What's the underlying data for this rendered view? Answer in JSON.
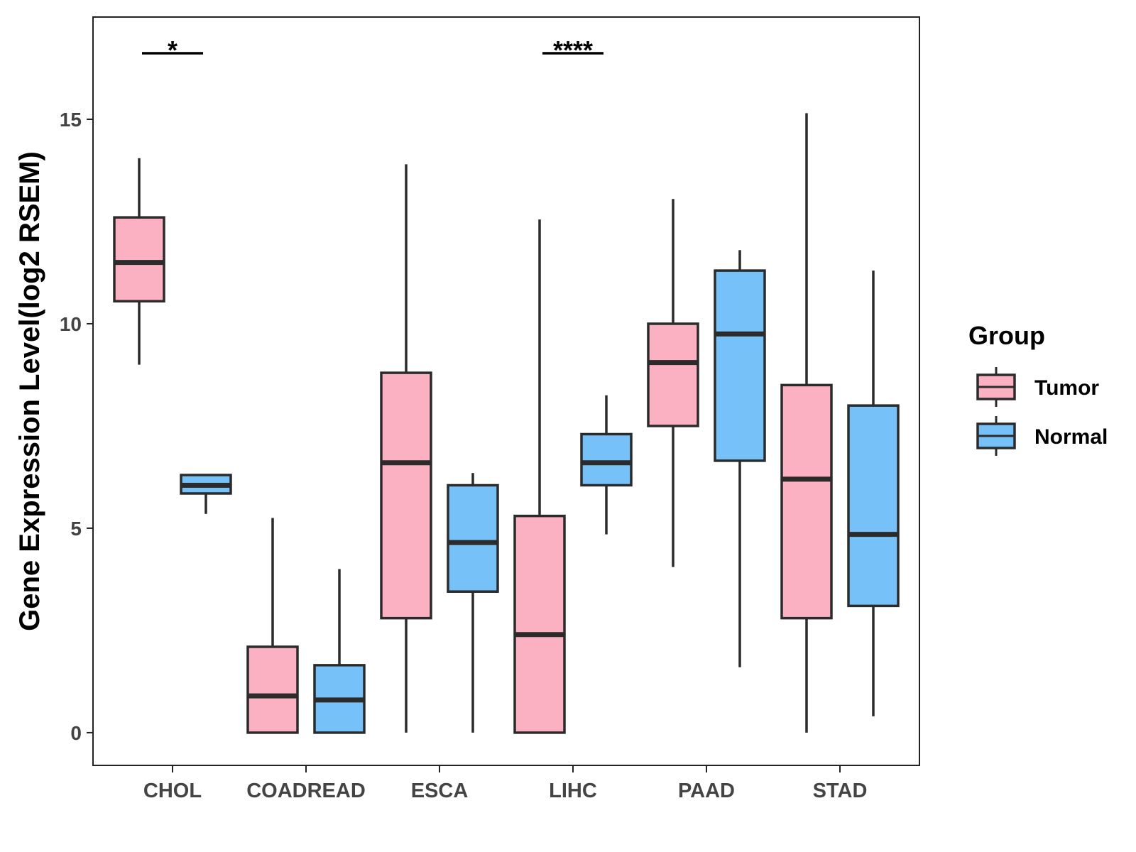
{
  "chart_data": {
    "type": "boxplot",
    "title": "",
    "xlabel": "",
    "ylabel": "Gene Expression Level(log2 RSEM)",
    "ylim": [
      -0.8,
      17.5
    ],
    "yticks": [
      0,
      5,
      10,
      15
    ],
    "grid": false,
    "categories": [
      "CHOL",
      "COADREAD",
      "ESCA",
      "LIHC",
      "PAAD",
      "STAD"
    ],
    "legend": {
      "title": "Group",
      "position": "right",
      "entries": [
        {
          "name": "Tumor",
          "color": "#FBB1C2"
        },
        {
          "name": "Normal",
          "color": "#76C1F7"
        }
      ]
    },
    "series": [
      {
        "name": "Tumor",
        "color": "#FBB1C2",
        "boxes": [
          {
            "category": "CHOL",
            "min": 9.0,
            "q1": 10.55,
            "median": 11.5,
            "q3": 12.6,
            "max": 14.05
          },
          {
            "category": "COADREAD",
            "min": 0.0,
            "q1": 0.0,
            "median": 0.9,
            "q3": 2.1,
            "max": 5.25
          },
          {
            "category": "ESCA",
            "min": 0.0,
            "q1": 2.8,
            "median": 6.6,
            "q3": 8.8,
            "max": 13.9
          },
          {
            "category": "LIHC",
            "min": 0.0,
            "q1": 0.0,
            "median": 2.4,
            "q3": 5.3,
            "max": 12.55
          },
          {
            "category": "PAAD",
            "min": 4.05,
            "q1": 7.5,
            "median": 9.05,
            "q3": 10.0,
            "max": 13.05
          },
          {
            "category": "STAD",
            "min": 0.0,
            "q1": 2.8,
            "median": 6.2,
            "q3": 8.5,
            "max": 15.15
          }
        ]
      },
      {
        "name": "Normal",
        "color": "#76C1F7",
        "boxes": [
          {
            "category": "CHOL",
            "min": 5.35,
            "q1": 5.85,
            "median": 6.05,
            "q3": 6.3,
            "max": 6.3
          },
          {
            "category": "COADREAD",
            "min": 0.0,
            "q1": 0.0,
            "median": 0.8,
            "q3": 1.65,
            "max": 4.0
          },
          {
            "category": "ESCA",
            "min": 0.0,
            "q1": 3.45,
            "median": 4.65,
            "q3": 6.05,
            "max": 6.35
          },
          {
            "category": "LIHC",
            "min": 4.85,
            "q1": 6.05,
            "median": 6.6,
            "q3": 7.3,
            "max": 8.25
          },
          {
            "category": "PAAD",
            "min": 1.6,
            "q1": 6.65,
            "median": 9.75,
            "q3": 11.3,
            "max": 11.8
          },
          {
            "category": "STAD",
            "min": 0.4,
            "q1": 3.1,
            "median": 4.85,
            "q3": 8.0,
            "max": 11.3
          }
        ]
      }
    ],
    "annotations": [
      {
        "category": "CHOL",
        "label": "*"
      },
      {
        "category": "LIHC",
        "label": "****"
      }
    ]
  }
}
